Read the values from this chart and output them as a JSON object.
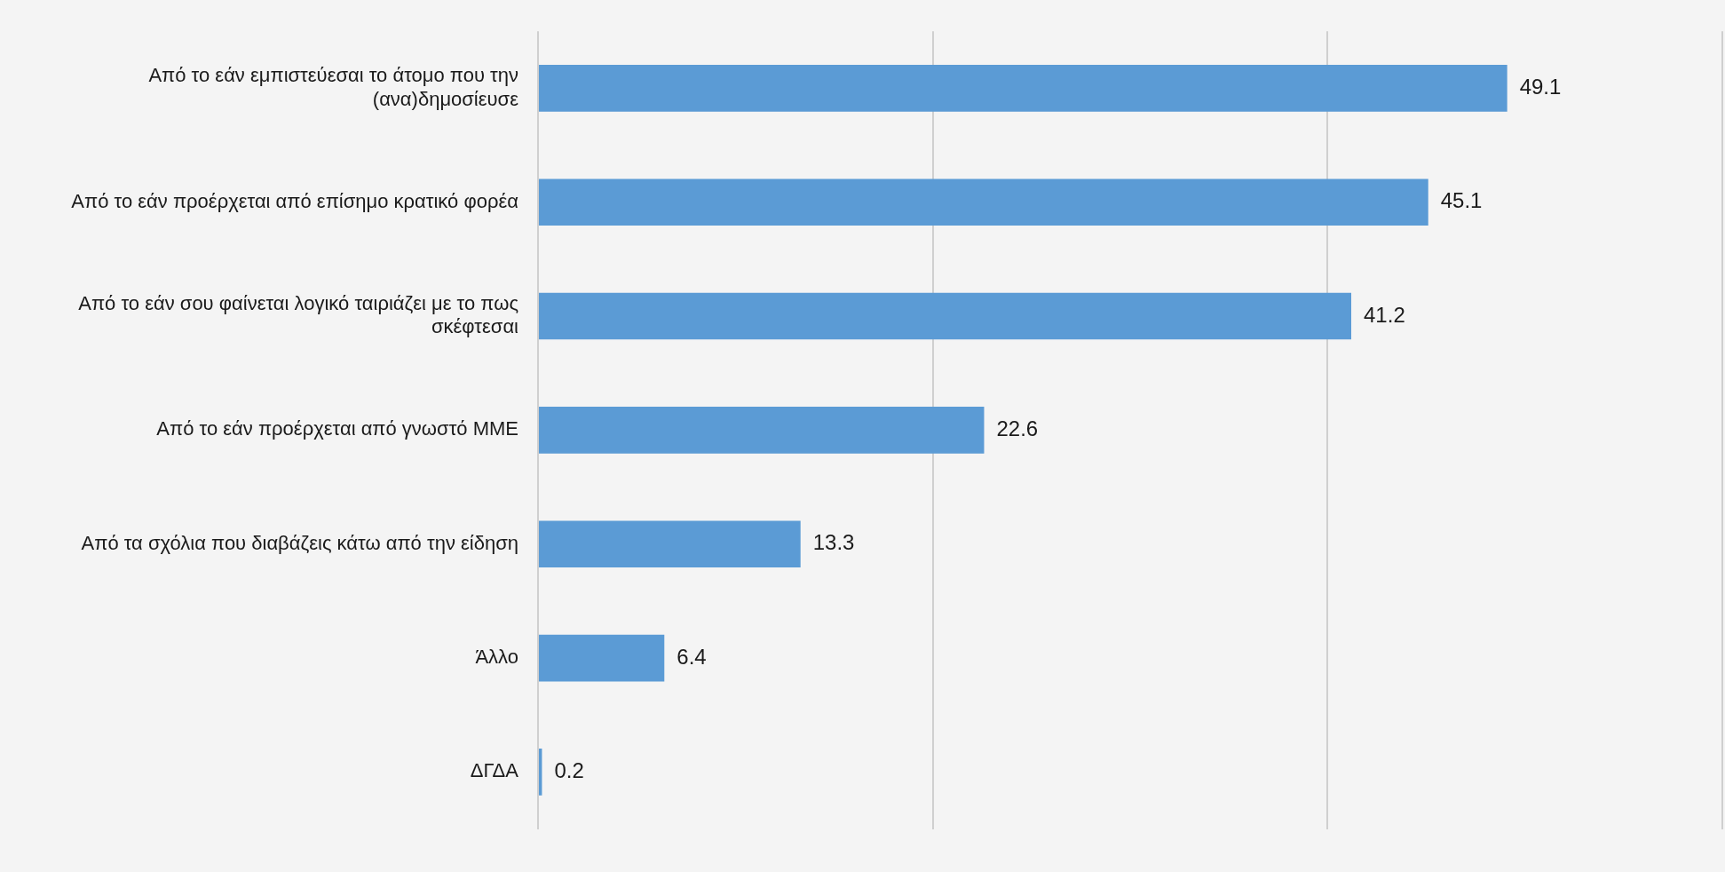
{
  "chart_data": {
    "type": "bar",
    "orientation": "horizontal",
    "categories": [
      "Από το εάν εμπιστεύεσαι το άτομο που την (ανα)δημοσίευσε",
      "Από το εάν προέρχεται από επίσημο κρατικό φορέα",
      "Από το εάν σου φαίνεται λογικό ταιριάζει με το πως σκέφτεσαι",
      "Από το εάν προέρχεται από γνωστό ΜΜΕ",
      "Από τα σχόλια που διαβάζεις κάτω από την είδηση",
      "Άλλο",
      "ΔΓΔΑ"
    ],
    "values": [
      49.1,
      45.1,
      41.2,
      22.6,
      13.3,
      6.4,
      0.2
    ],
    "color": "#5b9bd5",
    "xlim": [
      0,
      60
    ],
    "xticks": [
      {
        "value": 0,
        "label": null
      },
      {
        "value": 20,
        "label": null
      },
      {
        "value": 40,
        "label": null
      },
      {
        "value": 60,
        "label": null
      }
    ],
    "tick_labels": "y",
    "grid": "x",
    "data_labels": true,
    "legend": false
  }
}
